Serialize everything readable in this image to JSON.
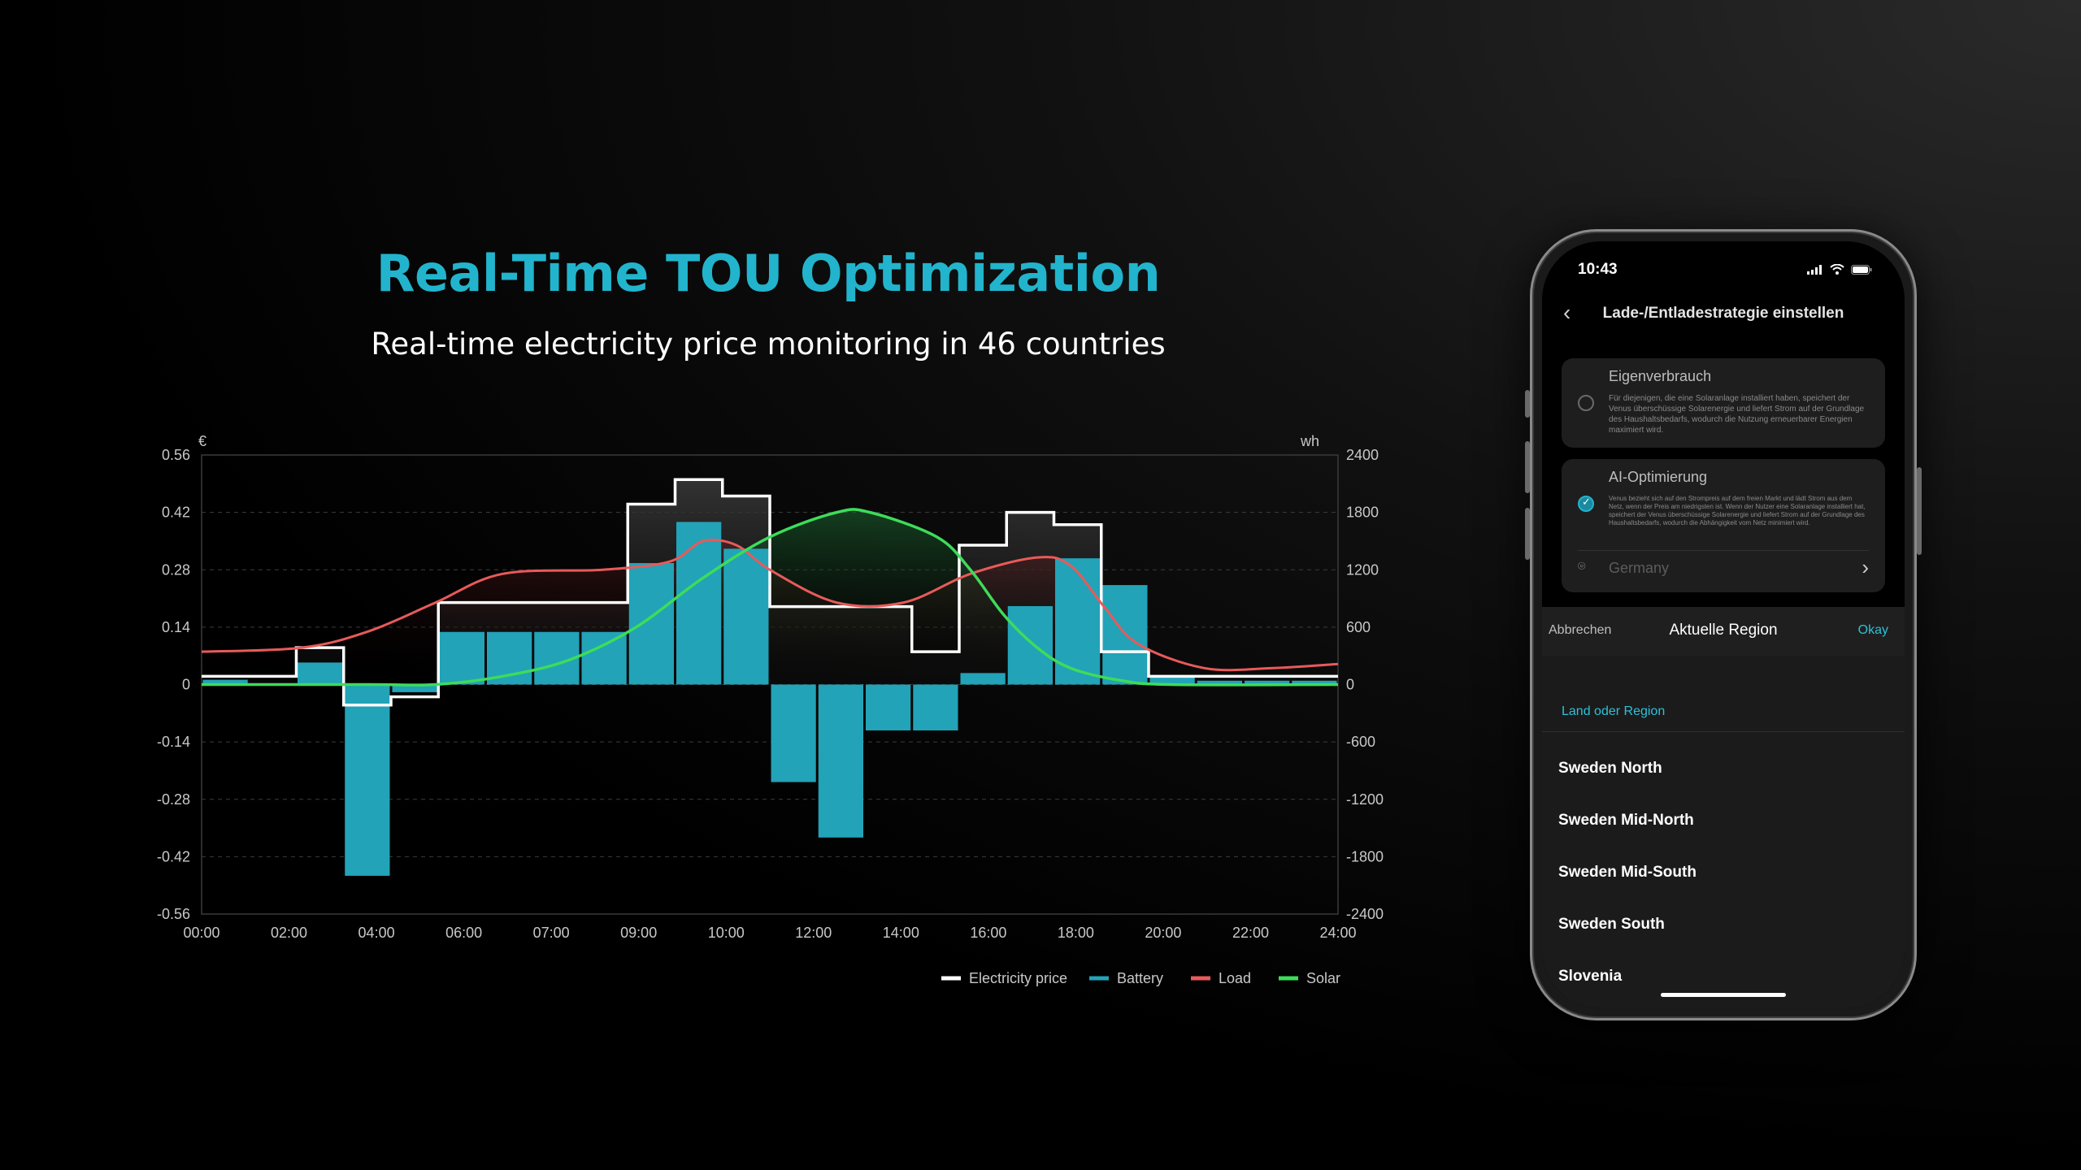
{
  "headline": "Real-Time TOU Optimization",
  "subline": "Real-time electricity price monitoring in 46 countries",
  "chart_data": {
    "type": "bar",
    "left_unit": "€",
    "right_unit": "wh",
    "left_ticks": [
      "0.56",
      "0.42",
      "0.28",
      "0.14",
      "0",
      "-0.14",
      "-0.28",
      "-0.42",
      "-0.56"
    ],
    "right_ticks": [
      "2400",
      "1800",
      "1200",
      "600",
      "0",
      "-600",
      "-1200",
      "-1800",
      "-2400"
    ],
    "x_ticks": [
      "00:00",
      "02:00",
      "04:00",
      "06:00",
      "07:00",
      "09:00",
      "10:00",
      "12:00",
      "14:00",
      "16:00",
      "18:00",
      "20:00",
      "22:00",
      "24:00"
    ],
    "ylim_left": [
      -0.56,
      0.56
    ],
    "ylim_right": [
      -2400,
      2400
    ],
    "grid": true,
    "legend_position": "bottom-right",
    "series": [
      {
        "name": "Electricity price",
        "color": "#ffffff",
        "style": "step",
        "axis": "left",
        "values": [
          0.02,
          0.02,
          0.09,
          -0.05,
          -0.03,
          0.2,
          0.2,
          0.2,
          0.2,
          0.44,
          0.5,
          0.46,
          0.19,
          0.19,
          0.19,
          0.08,
          0.34,
          0.42,
          0.39,
          0.08,
          0.02,
          0.02,
          0.02,
          0.02
        ]
      },
      {
        "name": "Battery",
        "color": "#22a3b8",
        "style": "bar",
        "axis": "right",
        "values": [
          50,
          0,
          230,
          -2000,
          -80,
          550,
          550,
          550,
          550,
          1270,
          1700,
          1420,
          -1020,
          -1600,
          -480,
          -480,
          120,
          820,
          1320,
          1040,
          80,
          40,
          40,
          40
        ]
      },
      {
        "name": "Load",
        "color": "#e85a5a",
        "style": "smooth-line",
        "axis": "left",
        "points": [
          [
            0,
            0.08
          ],
          [
            3,
            0.09
          ],
          [
            5,
            0.13
          ],
          [
            7,
            0.2
          ],
          [
            9,
            0.27
          ],
          [
            12,
            0.28
          ],
          [
            14,
            0.3
          ],
          [
            15,
            0.35
          ],
          [
            16,
            0.34
          ],
          [
            17,
            0.28
          ],
          [
            19,
            0.2
          ],
          [
            21,
            0.2
          ],
          [
            23,
            0.27
          ],
          [
            25,
            0.31
          ],
          [
            26,
            0.29
          ],
          [
            27,
            0.19
          ],
          [
            28,
            0.1
          ],
          [
            30,
            0.04
          ],
          [
            32,
            0.04
          ],
          [
            34,
            0.05
          ]
        ]
      },
      {
        "name": "Solar",
        "color": "#3ddc5a",
        "style": "smooth-line",
        "axis": "left",
        "points": [
          [
            0,
            0
          ],
          [
            5,
            0
          ],
          [
            7,
            0
          ],
          [
            9,
            0.02
          ],
          [
            11,
            0.06
          ],
          [
            13,
            0.14
          ],
          [
            15,
            0.26
          ],
          [
            17,
            0.36
          ],
          [
            19,
            0.42
          ],
          [
            20,
            0.42
          ],
          [
            22,
            0.36
          ],
          [
            23,
            0.28
          ],
          [
            24,
            0.17
          ],
          [
            25,
            0.09
          ],
          [
            26,
            0.04
          ],
          [
            27.5,
            0.01
          ],
          [
            29,
            0
          ],
          [
            34,
            0
          ]
        ]
      }
    ]
  },
  "phone": {
    "time": "10:43",
    "nav_title": "Lade-/Entladestrategie einstellen",
    "option1": {
      "title": "Eigenverbrauch",
      "desc": "Für diejenigen, die eine Solaranlage installiert haben, speichert der Venus überschüssige Solarenergie und liefert Strom auf der Grundlage des Haushaltsbedarfs, wodurch die Nutzung erneuerbarer Energien maximiert wird."
    },
    "option2": {
      "title": "AI-Optimierung",
      "desc": "Venus bezieht sich auf den Strompreis auf dem freien Markt und lädt Strom aus dem Netz, wenn der Preis am niedrigsten ist. Wenn der Nutzer eine Solaranlage installiert hat, speichert der Venus überschüssige Solarenergie und liefert Strom auf der Grundlage des Haushaltsbedarfs, wodurch die Abhängigkeit vom Netz minimiert wird."
    },
    "region_value": "Germany",
    "sheet": {
      "cancel": "Abbrechen",
      "title": "Aktuelle Region",
      "okay": "Okay",
      "label": "Land oder Region",
      "items": [
        "Sweden North",
        "Sweden Mid-North",
        "Sweden Mid-South",
        "Sweden South",
        "Slovenia"
      ]
    }
  }
}
